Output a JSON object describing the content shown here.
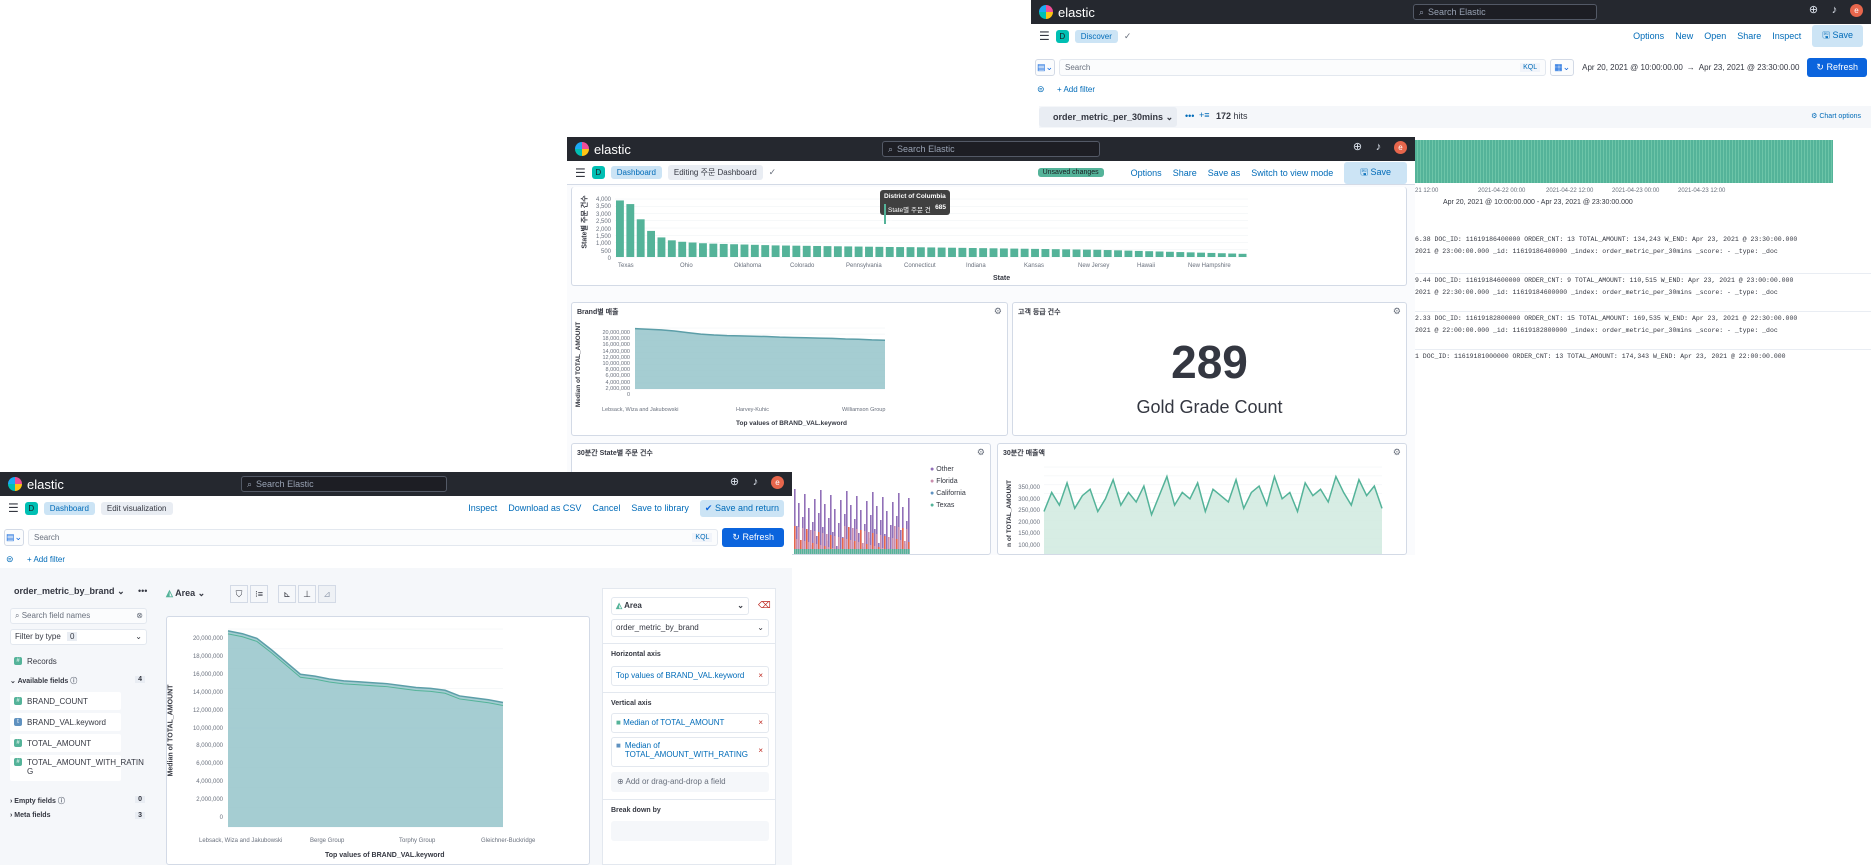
{
  "brand": "elastic",
  "search_elastic": "Search Elastic",
  "avatar_letter": "e",
  "discover": {
    "crumb": "Discover",
    "menu": [
      "Options",
      "New",
      "Open",
      "Share",
      "Inspect"
    ],
    "save": "Save",
    "search_placeholder": "Search",
    "kql": "KQL",
    "time_from": "Apr 20, 2021 @ 10:00:00.00",
    "arrow": "→",
    "time_to": "Apr 23, 2021 @ 23:30:00.00",
    "refresh": "Refresh",
    "add_filter": "+ Add filter",
    "index_pattern": "order_metric_per_30mins",
    "hits_count": "172",
    "hits_label": "hits",
    "chart_options": "Chart options",
    "x_ticks": [
      "-21 12:00",
      "2021-04-22 00:00",
      "2021-04-22 12:00",
      "2021-04-23 00:00",
      "2021-04-23 12:00"
    ],
    "range": "Apr 20, 2021 @ 10:00:00.000 - Apr 23, 2021 @ 23:30:00.000",
    "rows": [
      {
        "l1": "6.38  DOC_ID: 11619186400000  ORDER_CNT: 13  TOTAL_AMOUNT: 134,243  W_END: Apr 23, 2021 @ 23:30:00.000",
        "l2": "2021 @ 23:00:00.000  _id: 11619186400000  _index: order_metric_per_30mins  _score: -  _type: _doc"
      },
      {
        "l1": "9.44  DOC_ID: 11619184600000  ORDER_CNT: 9  TOTAL_AMOUNT: 110,515  W_END: Apr 23, 2021 @ 23:00:00.000",
        "l2": "2021 @ 22:30:00.000  _id: 11619184600000  _index: order_metric_per_30mins  _score: -  _type: _doc"
      },
      {
        "l1": "2.33  DOC_ID: 11619182800000  ORDER_CNT: 15  TOTAL_AMOUNT: 169,535  W_END: Apr 23, 2021 @ 22:30:00.000",
        "l2": "2021 @ 22:00:00.000  _id: 11619182800000  _index: order_metric_per_30mins  _score: -  _type: _doc"
      },
      {
        "l1": "1  DOC_ID: 11619181000000  ORDER_CNT: 13  TOTAL_AMOUNT: 174,343  W_END: Apr 23, 2021 @ 22:00:00.000",
        "l2": ""
      }
    ]
  },
  "dashboard": {
    "crumb1": "Dashboard",
    "crumb2": "Editing 주문 Dashboard",
    "unsaved": "Unsaved changes",
    "menu": [
      "Options",
      "Share",
      "Save as",
      "Switch to view mode"
    ],
    "save": "Save",
    "tooltip_title": "District of Columbia",
    "tooltip_label": "State별 주문 건수",
    "tooltip_value": "685",
    "state_ylabel": "State별 주문 건수",
    "state_xlabel": "State",
    "state_yticks": [
      "4,000",
      "3,500",
      "3,000",
      "2,500",
      "2,000",
      "1,500",
      "1,000",
      "500",
      "0"
    ],
    "state_xticks": [
      "Texas",
      "Ohio",
      "Oklahoma",
      "Colorado",
      "Pennsylvania",
      "Connecticut",
      "Indiana",
      "Kansas",
      "New Jersey",
      "Hawaii",
      "New Hampshire"
    ],
    "brand_title": "Brand별 매출",
    "brand_ylabel": "Median of TOTAL_AMOUNT",
    "brand_xlabel": "Top values of BRAND_VAL.keyword",
    "brand_yticks": [
      "20,000,000",
      "18,000,000",
      "16,000,000",
      "14,000,000",
      "12,000,000",
      "10,000,000",
      "8,000,000",
      "6,000,000",
      "4,000,000",
      "2,000,000",
      "0"
    ],
    "brand_xticks": [
      "Lebsack, Wiza and Jakubowski",
      "Harvey-Kuhic",
      "Williamson Group"
    ],
    "gold_title": "고객 등급 건수",
    "gold_value": "289",
    "gold_label": "Gold Grade Count",
    "state30_title": "30분간 State별 주문 건수",
    "legend": [
      "Other",
      "Florida",
      "California",
      "Texas"
    ],
    "sales_title": "30분간 매출액",
    "sales_yticks": [
      "350,000",
      "300,000",
      "250,000",
      "200,000",
      "150,000",
      "100,000"
    ],
    "sales_ylabel": "n of TOTAL_AMOUNT"
  },
  "lens": {
    "crumb1": "Dashboard",
    "crumb2": "Edit visualization",
    "menu": [
      "Inspect",
      "Download as CSV",
      "Cancel",
      "Save to library"
    ],
    "save_return": "Save and return",
    "search_placeholder": "Search",
    "kql": "KQL",
    "refresh": "Refresh",
    "add_filter": "+ Add filter",
    "index_pattern": "order_metric_by_brand",
    "search_fields": "Search field names",
    "filter_by_type": "Filter by type",
    "filter_count": "0",
    "records": "Records",
    "available_fields": "Available fields",
    "available_count": "4",
    "fields": [
      "BRAND_COUNT",
      "BRAND_VAL.keyword",
      "TOTAL_AMOUNT",
      "TOTAL_AMOUNT_WITH_RATIN G"
    ],
    "empty_fields": "Empty fields",
    "empty_count": "0",
    "meta_fields": "Meta fields",
    "meta_count": "3",
    "chart_type": "Area",
    "layer_type": "Area",
    "layer_index": "order_metric_by_brand",
    "h_axis": "Horizontal axis",
    "h_value": "Top values of BRAND_VAL.keyword",
    "v_axis": "Vertical axis",
    "v_value1": "Median of TOTAL_AMOUNT",
    "v_value2": "Median of TOTAL_AMOUNT_WITH_RATING",
    "add_field": "Add or drag-and-drop a field",
    "breakdown": "Break down by",
    "ylabel": "Median of TOTAL_AMOUNT",
    "xlabel": "Top values of BRAND_VAL.keyword",
    "yticks": [
      "20,000,000",
      "18,000,000",
      "16,000,000",
      "14,000,000",
      "12,000,000",
      "10,000,000",
      "8,000,000",
      "6,000,000",
      "4,000,000",
      "2,000,000",
      "0"
    ],
    "xticks": [
      "Lebsack, Wiza and Jakubowski",
      "Berge Group",
      "Torphy Group",
      "Gleichner-Buckridge"
    ]
  },
  "chart_data": [
    {
      "type": "bar",
      "title": "",
      "ylabel": "State별 주문 건수",
      "xlabel": "State",
      "ylim": [
        0,
        4000
      ],
      "values": [
        3900,
        3650,
        2600,
        1800,
        1350,
        1150,
        1050,
        1000,
        950,
        920,
        900,
        880,
        860,
        840,
        820,
        800,
        790,
        780,
        770,
        760,
        750,
        740,
        730,
        720,
        710,
        700,
        690,
        685,
        680,
        670,
        660,
        650,
        640,
        630,
        620,
        610,
        600,
        590,
        580,
        570,
        560,
        550,
        540,
        530,
        520,
        510,
        500,
        480,
        460,
        440,
        420,
        400,
        380,
        360,
        340,
        320,
        300,
        280,
        260,
        240,
        220
      ]
    },
    {
      "type": "area",
      "title": "Brand별 매출",
      "ylabel": "Median of TOTAL_AMOUNT",
      "xlabel": "Top values of BRAND_VAL.keyword",
      "ylim": [
        0,
        20000000
      ],
      "values": [
        19800000,
        19600000,
        19400000,
        19000000,
        18500000,
        18000000,
        17700000,
        17500000,
        17400000,
        17300000,
        17200000,
        17000000,
        16900000,
        16800000,
        16700000,
        16600000,
        16400000,
        16300000,
        16100000,
        16000000
      ]
    },
    {
      "type": "area",
      "title": "",
      "ylabel": "Median of TOTAL_AMOUNT",
      "xlabel": "Top values of BRAND_VAL.keyword",
      "ylim": [
        0,
        21000000
      ],
      "values": [
        20800000,
        20500000,
        20000000,
        18800000,
        17500000,
        16200000,
        16000000,
        15700000,
        15500000,
        15400000,
        15300000,
        15200000,
        15000000,
        14800000,
        14700000,
        14500000,
        13900000,
        13700000,
        13500000,
        13200000
      ]
    },
    {
      "type": "area",
      "title": "30분간 매출액",
      "ylabel": "n of TOTAL_AMOUNT",
      "ylim": [
        100000,
        380000
      ],
      "values": [
        240000,
        300000,
        260000,
        330000,
        250000,
        290000,
        310000,
        240000,
        280000,
        340000,
        260000,
        300000,
        270000,
        320000,
        230000,
        290000,
        350000,
        260000,
        300000,
        280000,
        330000,
        240000,
        310000,
        290000,
        270000,
        340000,
        250000,
        300000,
        320000,
        260000,
        350000,
        280000,
        300000,
        240000,
        330000,
        290000,
        310000,
        270000,
        350000,
        300000,
        260000,
        340000,
        290000,
        320000,
        250000
      ]
    }
  ]
}
